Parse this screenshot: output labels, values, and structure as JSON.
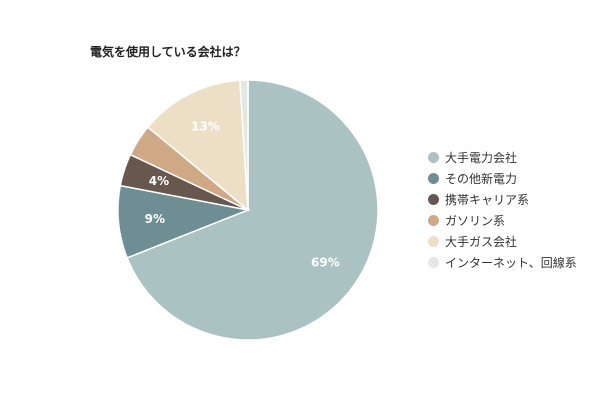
{
  "chart_data": {
    "type": "pie",
    "title": "電気を使用している会社は？",
    "slices": [
      {
        "name": "大手電力会社",
        "value": 69,
        "label": "69%",
        "color": "#abc2c3"
      },
      {
        "name": "その他新電力",
        "value": 9,
        "label": "9%",
        "color": "#6e8e94"
      },
      {
        "name": "携帯キャリア系",
        "value": 4,
        "label": "4%",
        "color": "#67574f"
      },
      {
        "name": "ガソリン系",
        "value": 4,
        "label": "",
        "color": "#cfa886"
      },
      {
        "name": "大手ガス会社",
        "value": 13,
        "label": "13%",
        "color": "#ecdfc6"
      },
      {
        "name": "インターネット、回線系",
        "value": 1,
        "label": "",
        "color": "#e5e8e1"
      }
    ],
    "legend_position": "right"
  }
}
